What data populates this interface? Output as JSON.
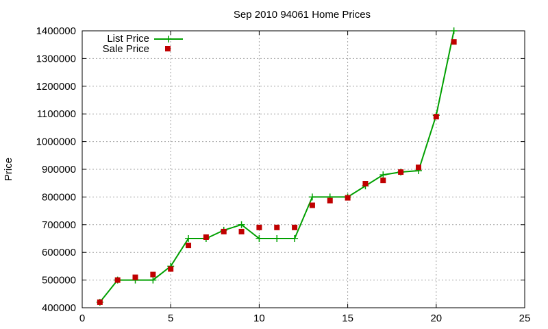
{
  "chart_data": {
    "type": "scatter",
    "title": "Sep 2010 94061 Home Prices",
    "xlabel": "",
    "ylabel": "Price",
    "xlim": [
      0,
      25
    ],
    "ylim": [
      400000,
      1400000
    ],
    "x_ticks": [
      0,
      5,
      10,
      15,
      20,
      25
    ],
    "y_ticks": [
      400000,
      500000,
      600000,
      700000,
      800000,
      900000,
      1000000,
      1100000,
      1200000,
      1300000,
      1400000
    ],
    "grid": true,
    "legend_position": "top-left",
    "series": [
      {
        "name": "List Price",
        "style": "linespoints",
        "marker": "plus",
        "color": "#00a000",
        "x": [
          1,
          2,
          3,
          4,
          5,
          6,
          7,
          8,
          9,
          10,
          11,
          12,
          13,
          14,
          15,
          16,
          17,
          18,
          19,
          20,
          21
        ],
        "y": [
          420000,
          500000,
          500000,
          500000,
          550000,
          650000,
          650000,
          680000,
          700000,
          650000,
          650000,
          650000,
          800000,
          800000,
          800000,
          840000,
          880000,
          890000,
          895000,
          1095000,
          1400000
        ]
      },
      {
        "name": "Sale Price",
        "style": "points",
        "marker": "square",
        "color": "#c00000",
        "x": [
          1,
          2,
          3,
          4,
          5,
          6,
          7,
          8,
          9,
          10,
          11,
          12,
          13,
          14,
          15,
          16,
          17,
          18,
          19,
          20,
          21
        ],
        "y": [
          420000,
          500000,
          510000,
          520000,
          540000,
          625000,
          655000,
          675000,
          675000,
          690000,
          690000,
          690000,
          770000,
          787000,
          797000,
          848000,
          860000,
          890000,
          907000,
          1090000,
          1360000
        ]
      }
    ]
  }
}
